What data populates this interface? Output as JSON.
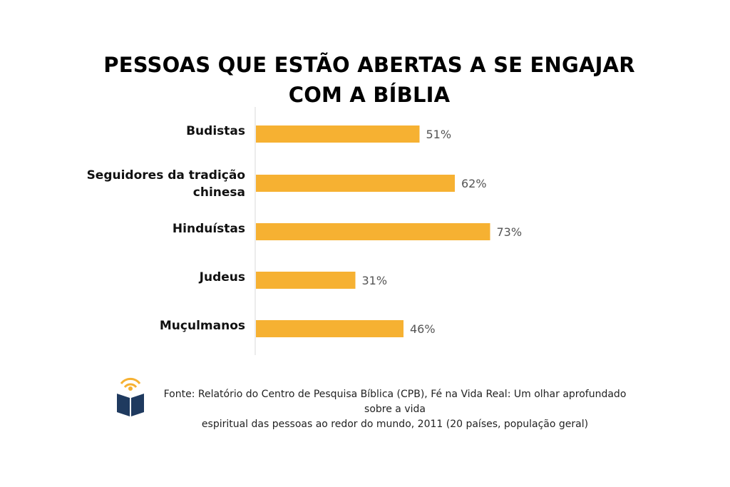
{
  "title_line1": "PESSOAS QUE ESTÃO ABERTAS A SE ENGAJAR",
  "title_line2": "COM A BÍBLIA",
  "source_line1": "Fonte: Relatório do Centro de Pesquisa Bíblica (CPB), Fé na Vida Real: Um olhar aprofundado sobre a vida",
  "source_line2": "espiritual das pessoas ao redor do mundo, 2011 (20 países, população geral)",
  "logo_icon": "open-book-icon",
  "colors": {
    "bar": "#F6B132",
    "axis": "#d9d9d9",
    "value_label": "#555555",
    "logo_blue": "#1F3A5F",
    "logo_yellow": "#F6B132"
  },
  "chart_data": {
    "type": "bar",
    "orientation": "horizontal",
    "title": "PESSOAS QUE ESTÃO ABERTAS A SE ENGAJAR COM A BÍBLIA",
    "categories": [
      "Budistas",
      "Seguidores da tradição chinesa",
      "Hinduístas",
      "Judeus",
      "Muçulmanos"
    ],
    "category_lines": [
      [
        "Budistas"
      ],
      [
        "Seguidores da tradição",
        "chinesa"
      ],
      [
        "Hinduístas"
      ],
      [
        "Judeus"
      ],
      [
        "Muçulmanos"
      ]
    ],
    "values": [
      51,
      62,
      73,
      31,
      46
    ],
    "value_labels": [
      "51%",
      "62%",
      "73%",
      "31%",
      "46%"
    ],
    "xlim": [
      0,
      100
    ],
    "grid": false,
    "legend": "none"
  }
}
